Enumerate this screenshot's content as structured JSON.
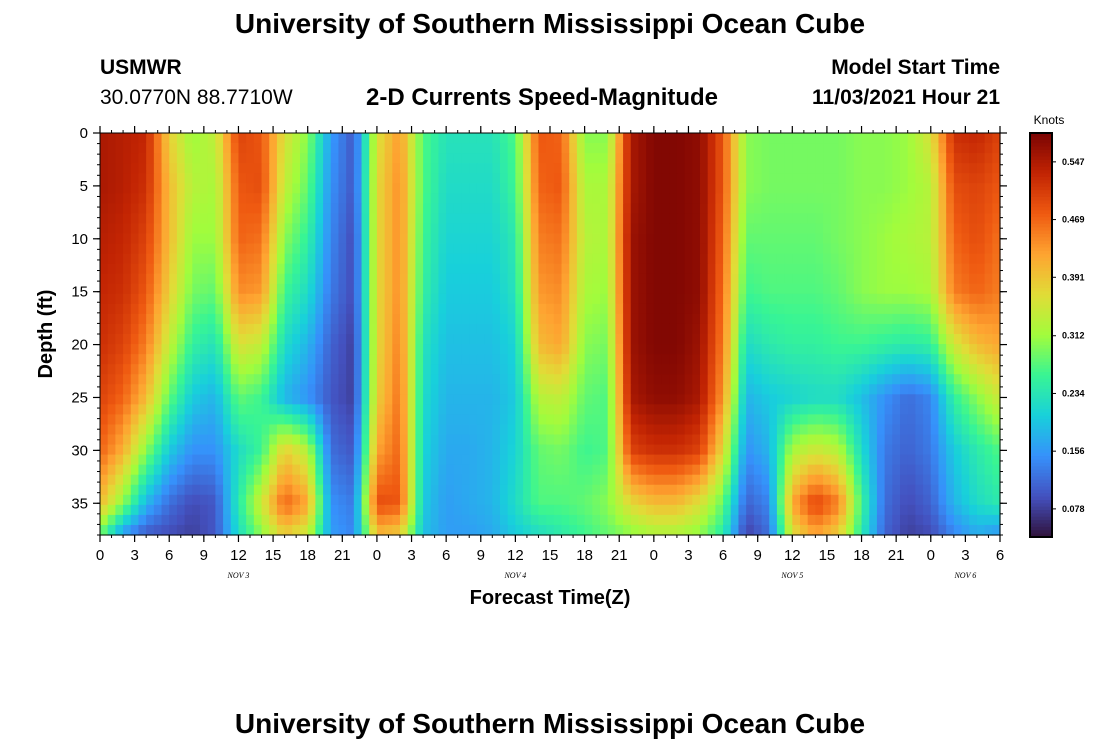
{
  "header": {
    "title": "University of Southern Mississippi Ocean Cube",
    "station_name": "USMWR",
    "station_coords": "30.0770N  88.7710W",
    "subtitle": "2-D Currents Speed-Magnitude",
    "model_start_label": "Model Start Time",
    "model_start_value": "11/03/2021 Hour 21"
  },
  "footer": {
    "title": "University of Southern Mississippi Ocean Cube"
  },
  "chart_data": {
    "type": "heatmap",
    "xlabel": "Forecast Time(Z)",
    "ylabel": "Depth (ft)",
    "xlim": [
      0,
      78
    ],
    "ylim": [
      38,
      0
    ],
    "y_ticks": [
      0,
      5,
      10,
      15,
      20,
      25,
      30,
      35
    ],
    "x_tick_labels": [
      "0",
      "3",
      "6",
      "9",
      "12",
      "15",
      "18",
      "21",
      "0",
      "3",
      "6",
      "9",
      "12",
      "15",
      "18",
      "21",
      "0",
      "3",
      "6",
      "9",
      "12",
      "15",
      "18",
      "21",
      "0",
      "3",
      "6"
    ],
    "date_labels": [
      {
        "label": "NOV 3",
        "hour": 12
      },
      {
        "label": "NOV 4",
        "hour": 36
      },
      {
        "label": "NOV 5",
        "hour": 60
      },
      {
        "label": "NOV 6",
        "hour": 75
      }
    ],
    "colorbar": {
      "title": "Knots",
      "min": 0.04,
      "max": 0.586,
      "ticks": [
        "0.078",
        "0.156",
        "0.234",
        "0.312",
        "0.391",
        "0.469",
        "0.547"
      ]
    },
    "depth_levels_ft": [
      0,
      5,
      10,
      15,
      20,
      25,
      30,
      35,
      38
    ],
    "hours": [
      0,
      2,
      4,
      6,
      8,
      10,
      12,
      14,
      16,
      18,
      20,
      22,
      24,
      26,
      28,
      30,
      32,
      34,
      36,
      38,
      40,
      42,
      44,
      46,
      48,
      50,
      52,
      54,
      56,
      58,
      60,
      62,
      64,
      66,
      68,
      70,
      72,
      74,
      76,
      78
    ],
    "speed_knots": [
      [
        0.55,
        0.54,
        0.53,
        0.38,
        0.31,
        0.34,
        0.5,
        0.48,
        0.36,
        0.3,
        0.16,
        0.1,
        0.36,
        0.43,
        0.27,
        0.23,
        0.23,
        0.23,
        0.27,
        0.48,
        0.47,
        0.3,
        0.3,
        0.55,
        0.58,
        0.58,
        0.57,
        0.48,
        0.3,
        0.29,
        0.29,
        0.29,
        0.29,
        0.3,
        0.3,
        0.31,
        0.36,
        0.52,
        0.53,
        0.5
      ],
      [
        0.55,
        0.54,
        0.52,
        0.4,
        0.33,
        0.32,
        0.48,
        0.49,
        0.34,
        0.28,
        0.15,
        0.1,
        0.37,
        0.44,
        0.27,
        0.22,
        0.22,
        0.22,
        0.26,
        0.47,
        0.48,
        0.32,
        0.32,
        0.55,
        0.58,
        0.58,
        0.57,
        0.48,
        0.3,
        0.29,
        0.29,
        0.29,
        0.29,
        0.3,
        0.3,
        0.31,
        0.33,
        0.49,
        0.5,
        0.48
      ],
      [
        0.54,
        0.53,
        0.5,
        0.4,
        0.31,
        0.31,
        0.47,
        0.46,
        0.3,
        0.25,
        0.14,
        0.09,
        0.37,
        0.44,
        0.26,
        0.21,
        0.21,
        0.21,
        0.24,
        0.45,
        0.46,
        0.33,
        0.32,
        0.56,
        0.58,
        0.58,
        0.57,
        0.47,
        0.28,
        0.28,
        0.28,
        0.28,
        0.29,
        0.3,
        0.31,
        0.32,
        0.33,
        0.47,
        0.49,
        0.46
      ],
      [
        0.53,
        0.52,
        0.48,
        0.38,
        0.29,
        0.28,
        0.44,
        0.43,
        0.26,
        0.22,
        0.13,
        0.09,
        0.37,
        0.44,
        0.25,
        0.2,
        0.2,
        0.2,
        0.23,
        0.43,
        0.44,
        0.32,
        0.31,
        0.56,
        0.58,
        0.58,
        0.57,
        0.46,
        0.26,
        0.27,
        0.27,
        0.27,
        0.28,
        0.3,
        0.31,
        0.31,
        0.32,
        0.45,
        0.47,
        0.45
      ],
      [
        0.52,
        0.5,
        0.45,
        0.34,
        0.25,
        0.23,
        0.36,
        0.34,
        0.22,
        0.18,
        0.11,
        0.08,
        0.37,
        0.45,
        0.23,
        0.19,
        0.19,
        0.19,
        0.21,
        0.4,
        0.42,
        0.3,
        0.29,
        0.56,
        0.58,
        0.58,
        0.56,
        0.45,
        0.22,
        0.24,
        0.25,
        0.25,
        0.26,
        0.26,
        0.25,
        0.24,
        0.25,
        0.35,
        0.4,
        0.42
      ],
      [
        0.5,
        0.47,
        0.4,
        0.28,
        0.2,
        0.18,
        0.28,
        0.26,
        0.18,
        0.15,
        0.1,
        0.08,
        0.38,
        0.46,
        0.22,
        0.18,
        0.18,
        0.18,
        0.2,
        0.33,
        0.34,
        0.28,
        0.27,
        0.55,
        0.57,
        0.57,
        0.55,
        0.43,
        0.18,
        0.2,
        0.21,
        0.22,
        0.22,
        0.19,
        0.15,
        0.12,
        0.14,
        0.25,
        0.3,
        0.35
      ],
      [
        0.47,
        0.41,
        0.3,
        0.2,
        0.15,
        0.15,
        0.22,
        0.26,
        0.38,
        0.33,
        0.12,
        0.1,
        0.42,
        0.47,
        0.21,
        0.17,
        0.17,
        0.18,
        0.21,
        0.28,
        0.29,
        0.26,
        0.27,
        0.5,
        0.52,
        0.52,
        0.5,
        0.37,
        0.15,
        0.18,
        0.32,
        0.35,
        0.33,
        0.22,
        0.13,
        0.11,
        0.13,
        0.2,
        0.24,
        0.27
      ],
      [
        0.4,
        0.3,
        0.18,
        0.12,
        0.09,
        0.1,
        0.24,
        0.35,
        0.47,
        0.42,
        0.15,
        0.13,
        0.49,
        0.48,
        0.2,
        0.16,
        0.17,
        0.18,
        0.22,
        0.27,
        0.27,
        0.28,
        0.3,
        0.37,
        0.4,
        0.4,
        0.36,
        0.28,
        0.11,
        0.14,
        0.42,
        0.5,
        0.45,
        0.26,
        0.12,
        0.09,
        0.11,
        0.18,
        0.22,
        0.24
      ],
      [
        0.28,
        0.15,
        0.1,
        0.09,
        0.08,
        0.1,
        0.22,
        0.3,
        0.38,
        0.34,
        0.16,
        0.14,
        0.4,
        0.38,
        0.19,
        0.16,
        0.16,
        0.17,
        0.2,
        0.22,
        0.24,
        0.26,
        0.28,
        0.3,
        0.32,
        0.32,
        0.3,
        0.24,
        0.08,
        0.12,
        0.36,
        0.42,
        0.38,
        0.24,
        0.11,
        0.08,
        0.09,
        0.14,
        0.17,
        0.15
      ]
    ]
  }
}
